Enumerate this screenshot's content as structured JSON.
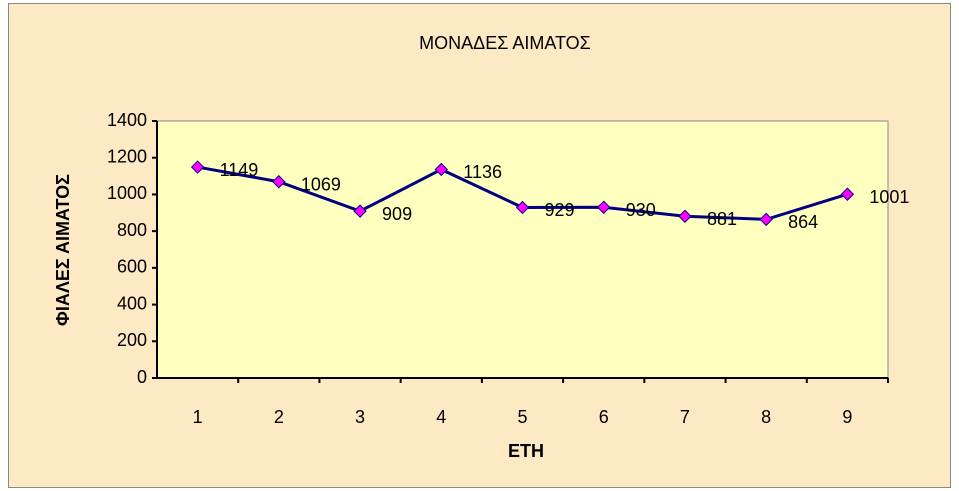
{
  "chart_data": {
    "type": "line",
    "title": "ΜΟΝΑΔΕΣ ΑΙΜΑΤΟΣ",
    "x_label": "ΕΤΗ",
    "y_label": "ΦΙΑΛΕΣ ΑΙΜΑΤΟΣ",
    "categories": [
      "1",
      "2",
      "3",
      "4",
      "5",
      "6",
      "7",
      "8",
      "9"
    ],
    "series": [
      {
        "name": "ΜΟΝΑΔΕΣ ΑΙΜΑΤΟΣ",
        "color": "#000080",
        "marker_color": "#ff00ff",
        "values": [
          1149,
          1069,
          909,
          1136,
          929,
          930,
          881,
          864,
          1001
        ]
      }
    ],
    "ylim": [
      0,
      1400
    ],
    "yticks": [
      0,
      200,
      400,
      600,
      800,
      1000,
      1200,
      1400
    ]
  }
}
